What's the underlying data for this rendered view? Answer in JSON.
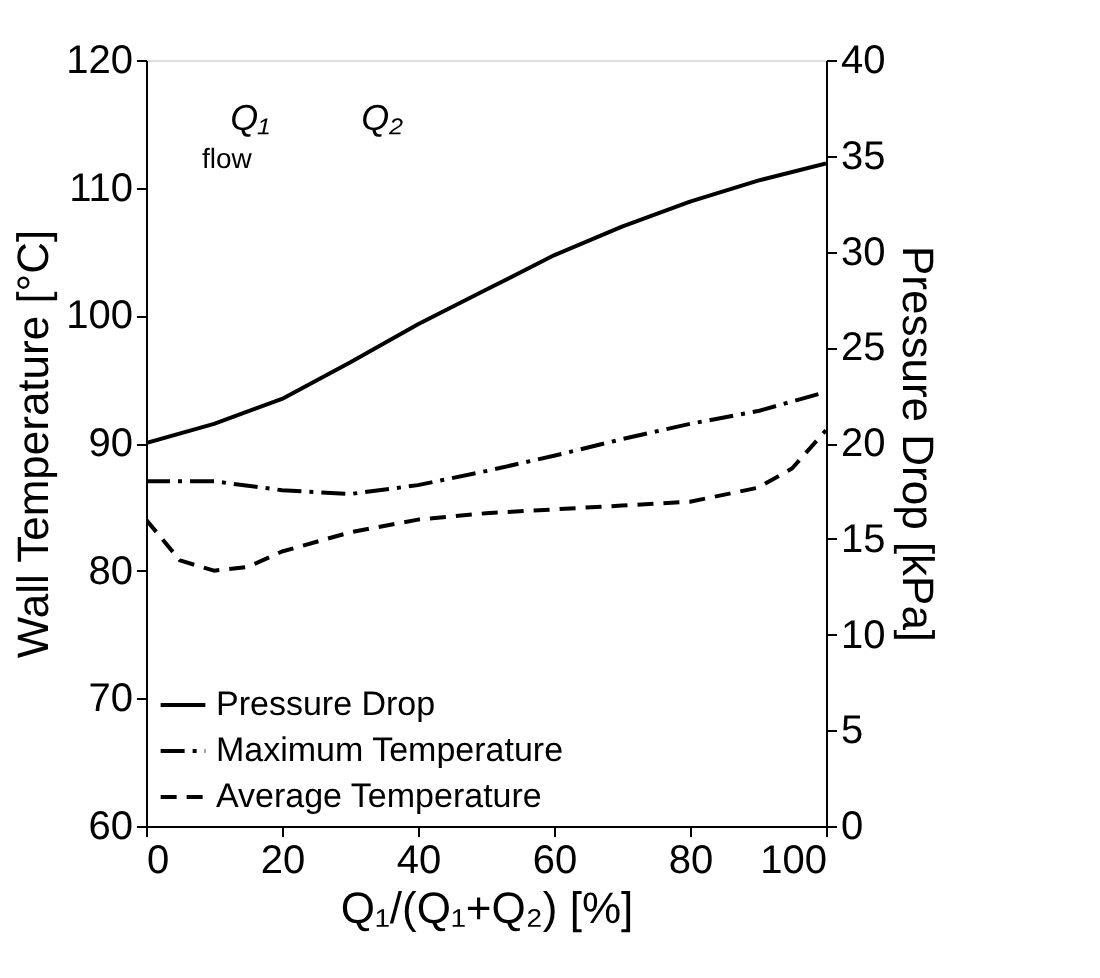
{
  "chart_data": {
    "type": "line",
    "xlabel": "Q₁/(Q₁+Q₂) [%]",
    "ylabel": "Wall Temperature [°C]",
    "y2label": "Pressure Drop [kPa]",
    "xlim": [
      0,
      100
    ],
    "xticks": [
      0,
      20,
      40,
      60,
      80,
      100
    ],
    "ylim": [
      60,
      120
    ],
    "yticks": [
      60,
      70,
      80,
      90,
      100,
      110,
      120
    ],
    "y2lim": [
      0,
      40
    ],
    "y2ticks": [
      0,
      5,
      10,
      15,
      20,
      25,
      30,
      35,
      40
    ],
    "grid": false,
    "legend": "bottom left",
    "marker": "none",
    "annotations": [
      "flow",
      "Q₁",
      "Q₂"
    ],
    "series": [
      {
        "name": "Pressure Drop",
        "color": "#000000",
        "axis": "y2",
        "line_style": "solid",
        "x": [
          0,
          10,
          20,
          30,
          40,
          50,
          60,
          70,
          80,
          90,
          100
        ],
        "values": [
          20,
          21,
          22.3,
          24.2,
          26.2,
          28,
          29.8,
          31.3,
          32.6,
          33.7,
          34.6
        ]
      },
      {
        "name": "Maximum Temperature",
        "color": "#000000",
        "line_style": "dashdot",
        "x": [
          0,
          10,
          20,
          30,
          40,
          50,
          60,
          70,
          80,
          90,
          100
        ],
        "values": [
          87,
          87,
          86.3,
          86,
          86.7,
          87.8,
          89,
          90.3,
          91.5,
          92.5,
          94
        ]
      },
      {
        "name": "Average Temperature",
        "color": "#000000",
        "line_style": "dashed",
        "x": [
          0,
          5,
          10,
          15,
          20,
          30,
          40,
          50,
          60,
          70,
          80,
          90,
          95,
          100
        ],
        "values": [
          84,
          80.8,
          80,
          80.3,
          81.5,
          83,
          84,
          84.5,
          84.8,
          85.1,
          85.4,
          86.5,
          88,
          91
        ]
      }
    ]
  }
}
